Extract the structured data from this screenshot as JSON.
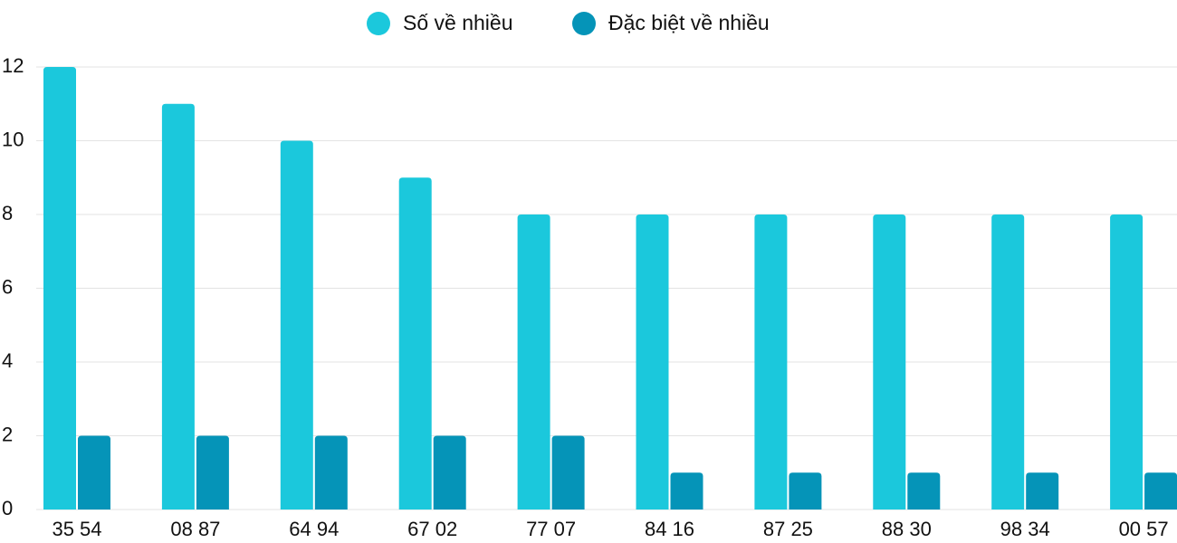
{
  "chart_data": {
    "type": "bar",
    "categories": [
      "35 54",
      "08 87",
      "64 94",
      "67 02",
      "77 07",
      "84 16",
      "87 25",
      "88 30",
      "98 34",
      "00 57"
    ],
    "series": [
      {
        "name": "Số về nhiều",
        "color": "#1bc8dc",
        "values": [
          12,
          11,
          10,
          9,
          8,
          8,
          8,
          8,
          8,
          8
        ]
      },
      {
        "name": "Đặc biệt về nhiều",
        "color": "#0594b8",
        "values": [
          2,
          2,
          2,
          2,
          2,
          1,
          1,
          1,
          1,
          1
        ]
      }
    ],
    "ylim": [
      0,
      12
    ],
    "yticks": [
      0,
      2,
      4,
      6,
      8,
      10,
      12
    ],
    "grid": true,
    "legend": "top"
  }
}
